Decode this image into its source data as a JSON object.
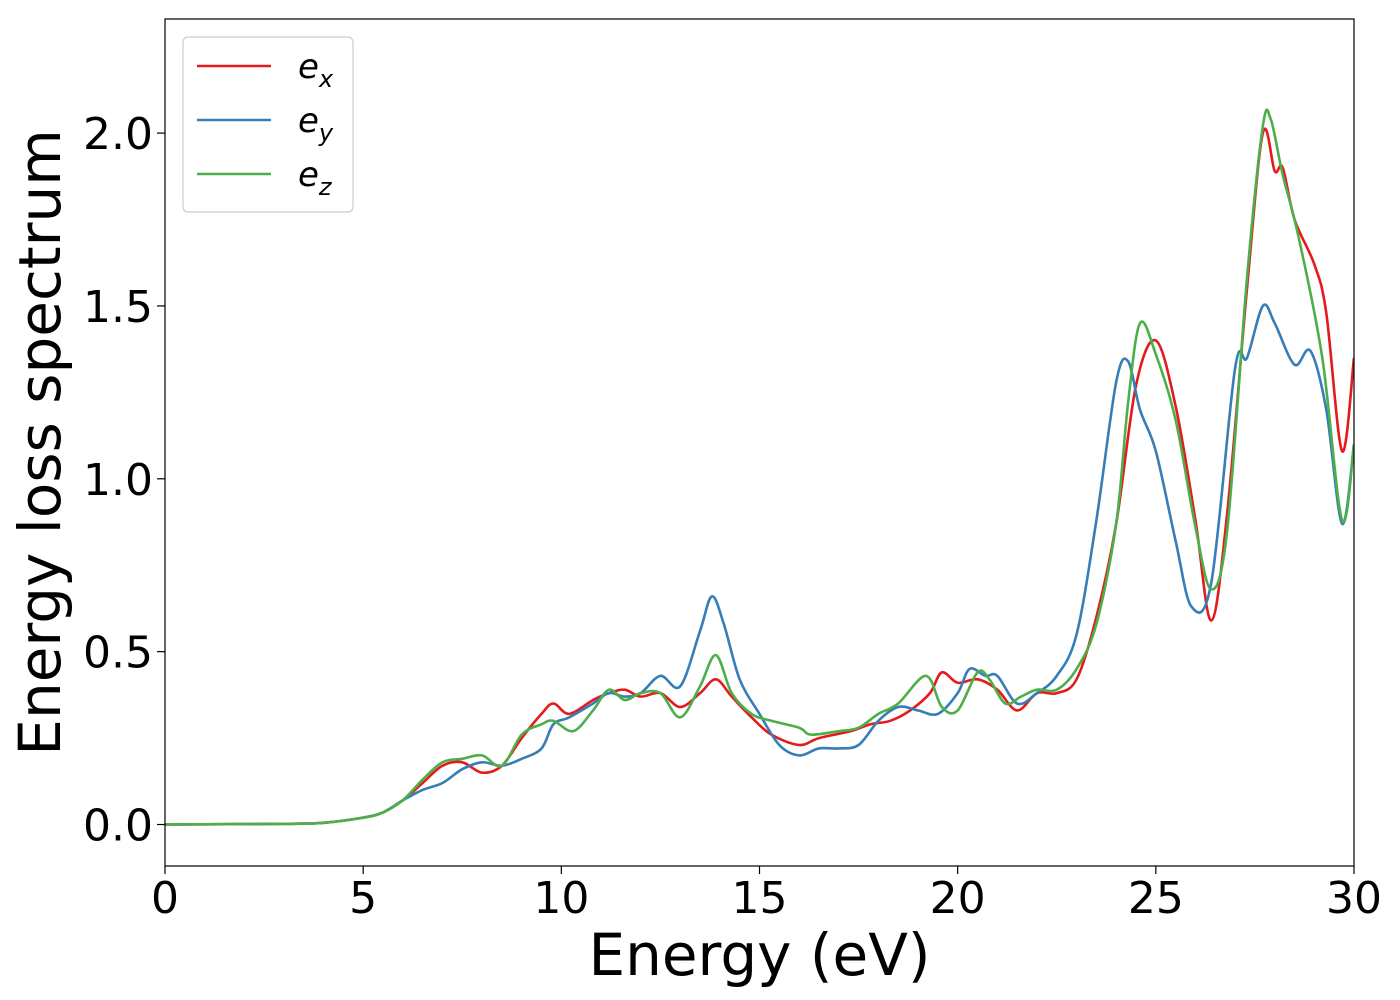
{
  "chart_data": {
    "type": "line",
    "title": "",
    "xlabel": "Energy (eV)",
    "ylabel": "Energy loss spectrum",
    "xlim": [
      0,
      30
    ],
    "ylim": [
      -0.12,
      2.33
    ],
    "xticks": [
      0,
      5,
      10,
      15,
      20,
      25,
      30
    ],
    "xtick_labels": [
      "0",
      "5",
      "10",
      "15",
      "20",
      "25",
      "30"
    ],
    "yticks": [
      0.0,
      0.5,
      1.0,
      1.5,
      2.0
    ],
    "ytick_labels": [
      "0.0",
      "0.5",
      "1.0",
      "1.5",
      "2.0"
    ],
    "grid": false,
    "legend_position": "top-left",
    "series": [
      {
        "name": "e_x",
        "label_main": "e",
        "label_sub": "x",
        "color": "#e41a1c",
        "points": [
          [
            0,
            0
          ],
          [
            3,
            0.002
          ],
          [
            4,
            0.005
          ],
          [
            5,
            0.02
          ],
          [
            5.5,
            0.035
          ],
          [
            6,
            0.07
          ],
          [
            6.5,
            0.12
          ],
          [
            7,
            0.17
          ],
          [
            7.5,
            0.18
          ],
          [
            8,
            0.15
          ],
          [
            8.5,
            0.17
          ],
          [
            9,
            0.25
          ],
          [
            9.5,
            0.32
          ],
          [
            9.8,
            0.35
          ],
          [
            10.2,
            0.32
          ],
          [
            10.8,
            0.36
          ],
          [
            11.2,
            0.38
          ],
          [
            11.6,
            0.39
          ],
          [
            12,
            0.37
          ],
          [
            12.5,
            0.38
          ],
          [
            13,
            0.34
          ],
          [
            13.5,
            0.38
          ],
          [
            13.9,
            0.42
          ],
          [
            14.3,
            0.37
          ],
          [
            14.8,
            0.31
          ],
          [
            15.3,
            0.26
          ],
          [
            16,
            0.23
          ],
          [
            16.5,
            0.25
          ],
          [
            17.3,
            0.27
          ],
          [
            17.8,
            0.29
          ],
          [
            18.3,
            0.3
          ],
          [
            18.8,
            0.33
          ],
          [
            19.3,
            0.38
          ],
          [
            19.6,
            0.44
          ],
          [
            20,
            0.41
          ],
          [
            20.5,
            0.42
          ],
          [
            21,
            0.39
          ],
          [
            21.5,
            0.33
          ],
          [
            22,
            0.38
          ],
          [
            22.5,
            0.38
          ],
          [
            23,
            0.42
          ],
          [
            23.5,
            0.6
          ],
          [
            24,
            0.87
          ],
          [
            24.5,
            1.27
          ],
          [
            25,
            1.4
          ],
          [
            25.5,
            1.21
          ],
          [
            26,
            0.88
          ],
          [
            26.4,
            0.59
          ],
          [
            26.8,
            0.9
          ],
          [
            27.3,
            1.55
          ],
          [
            27.7,
            2.0
          ],
          [
            28,
            1.89
          ],
          [
            28.2,
            1.9
          ],
          [
            28.5,
            1.75
          ],
          [
            29,
            1.62
          ],
          [
            29.3,
            1.48
          ],
          [
            29.7,
            1.08
          ],
          [
            30,
            1.35
          ]
        ]
      },
      {
        "name": "e_y",
        "label_main": "e",
        "label_sub": "y",
        "color": "#377eb8",
        "points": [
          [
            0,
            0
          ],
          [
            3,
            0.002
          ],
          [
            4,
            0.005
          ],
          [
            5,
            0.02
          ],
          [
            5.5,
            0.035
          ],
          [
            6,
            0.07
          ],
          [
            6.5,
            0.1
          ],
          [
            7,
            0.12
          ],
          [
            7.5,
            0.16
          ],
          [
            8,
            0.18
          ],
          [
            8.5,
            0.17
          ],
          [
            9,
            0.19
          ],
          [
            9.5,
            0.22
          ],
          [
            9.8,
            0.29
          ],
          [
            10.2,
            0.31
          ],
          [
            10.8,
            0.35
          ],
          [
            11.2,
            0.38
          ],
          [
            11.6,
            0.37
          ],
          [
            12,
            0.38
          ],
          [
            12.5,
            0.43
          ],
          [
            13,
            0.4
          ],
          [
            13.5,
            0.56
          ],
          [
            13.8,
            0.66
          ],
          [
            14.1,
            0.58
          ],
          [
            14.5,
            0.42
          ],
          [
            15,
            0.32
          ],
          [
            15.5,
            0.23
          ],
          [
            16,
            0.2
          ],
          [
            16.5,
            0.22
          ],
          [
            17,
            0.22
          ],
          [
            17.5,
            0.23
          ],
          [
            18,
            0.3
          ],
          [
            18.5,
            0.34
          ],
          [
            19,
            0.33
          ],
          [
            19.5,
            0.32
          ],
          [
            20,
            0.38
          ],
          [
            20.3,
            0.45
          ],
          [
            20.7,
            0.43
          ],
          [
            21,
            0.43
          ],
          [
            21.5,
            0.35
          ],
          [
            22,
            0.38
          ],
          [
            22.5,
            0.43
          ],
          [
            23,
            0.55
          ],
          [
            23.5,
            0.88
          ],
          [
            24,
            1.28
          ],
          [
            24.3,
            1.34
          ],
          [
            24.6,
            1.2
          ],
          [
            25,
            1.08
          ],
          [
            25.5,
            0.82
          ],
          [
            25.9,
            0.63
          ],
          [
            26.4,
            0.7
          ],
          [
            27,
            1.32
          ],
          [
            27.3,
            1.35
          ],
          [
            27.7,
            1.5
          ],
          [
            28,
            1.45
          ],
          [
            28.5,
            1.33
          ],
          [
            28.9,
            1.37
          ],
          [
            29.3,
            1.2
          ],
          [
            29.7,
            0.87
          ],
          [
            30,
            1.1
          ]
        ]
      },
      {
        "name": "e_z",
        "label_main": "e",
        "label_sub": "z",
        "color": "#4daf4a",
        "points": [
          [
            0,
            0
          ],
          [
            3,
            0.002
          ],
          [
            4,
            0.005
          ],
          [
            5,
            0.02
          ],
          [
            5.5,
            0.035
          ],
          [
            6,
            0.07
          ],
          [
            6.5,
            0.13
          ],
          [
            7,
            0.18
          ],
          [
            7.5,
            0.19
          ],
          [
            8,
            0.2
          ],
          [
            8.5,
            0.17
          ],
          [
            9,
            0.26
          ],
          [
            9.5,
            0.29
          ],
          [
            9.8,
            0.3
          ],
          [
            10.3,
            0.27
          ],
          [
            10.8,
            0.33
          ],
          [
            11.2,
            0.39
          ],
          [
            11.6,
            0.36
          ],
          [
            12,
            0.38
          ],
          [
            12.5,
            0.38
          ],
          [
            13,
            0.31
          ],
          [
            13.5,
            0.4
          ],
          [
            13.9,
            0.49
          ],
          [
            14.3,
            0.38
          ],
          [
            14.8,
            0.32
          ],
          [
            15.3,
            0.3
          ],
          [
            16,
            0.28
          ],
          [
            16.3,
            0.26
          ],
          [
            17,
            0.27
          ],
          [
            17.5,
            0.28
          ],
          [
            18,
            0.32
          ],
          [
            18.5,
            0.35
          ],
          [
            19.2,
            0.43
          ],
          [
            19.6,
            0.34
          ],
          [
            20,
            0.33
          ],
          [
            20.5,
            0.44
          ],
          [
            20.8,
            0.42
          ],
          [
            21.2,
            0.35
          ],
          [
            21.6,
            0.37
          ],
          [
            22,
            0.39
          ],
          [
            22.5,
            0.39
          ],
          [
            23,
            0.45
          ],
          [
            23.5,
            0.58
          ],
          [
            24,
            0.87
          ],
          [
            24.3,
            1.22
          ],
          [
            24.6,
            1.45
          ],
          [
            25,
            1.36
          ],
          [
            25.5,
            1.17
          ],
          [
            26,
            0.86
          ],
          [
            26.4,
            0.68
          ],
          [
            26.8,
            0.85
          ],
          [
            27.3,
            1.58
          ],
          [
            27.7,
            2.02
          ],
          [
            27.9,
            2.04
          ],
          [
            28.2,
            1.88
          ],
          [
            28.6,
            1.7
          ],
          [
            29.2,
            1.35
          ],
          [
            29.7,
            0.88
          ],
          [
            30,
            1.1
          ]
        ]
      }
    ]
  }
}
